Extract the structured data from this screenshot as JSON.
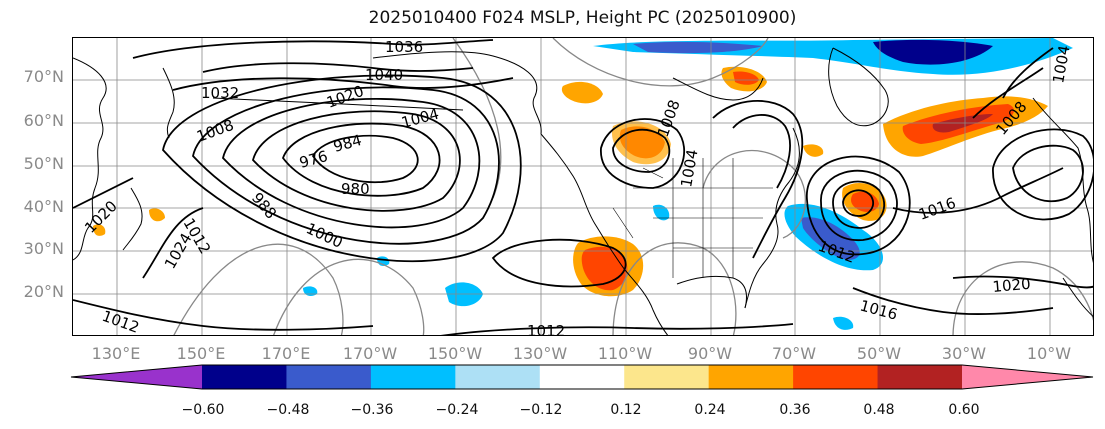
{
  "title": "2025010400 F024 MSLP, Height PC (2025010900)",
  "latitude_labels": [
    "70°N",
    "60°N",
    "50°N",
    "40°N",
    "30°N",
    "20°N"
  ],
  "longitude_labels": [
    "130°E",
    "150°E",
    "170°E",
    "170°W",
    "150°W",
    "130°W",
    "110°W",
    "90°W",
    "70°W",
    "50°W",
    "30°W",
    "10°W"
  ],
  "isobar_labels": [
    "1036",
    "1040",
    "1032",
    "1020",
    "1008",
    "1004",
    "976",
    "984",
    "980",
    "988",
    "1000",
    "1012",
    "1024",
    "1020",
    "1012",
    "1008",
    "1004",
    "1012",
    "1016",
    "1016",
    "1020",
    "1004",
    "1008",
    "1012"
  ],
  "colorbar": {
    "ticks": [
      "−0.60",
      "−0.48",
      "−0.36",
      "−0.24",
      "−0.12",
      "0.12",
      "0.24",
      "0.36",
      "0.48",
      "0.60"
    ],
    "colors": [
      "#9932CC",
      "#00008B",
      "#3A5BCC",
      "#00BFFF",
      "#ADE0F5",
      "#FFFFFF",
      "#FCE68C",
      "#FFA500",
      "#FF4500",
      "#B22222",
      "#FF88AA"
    ],
    "extend": "both"
  },
  "colors": {
    "contour": "#000000",
    "grid": "#888888",
    "coastline": "#000000",
    "axis_text": "#8a8a8a"
  }
}
